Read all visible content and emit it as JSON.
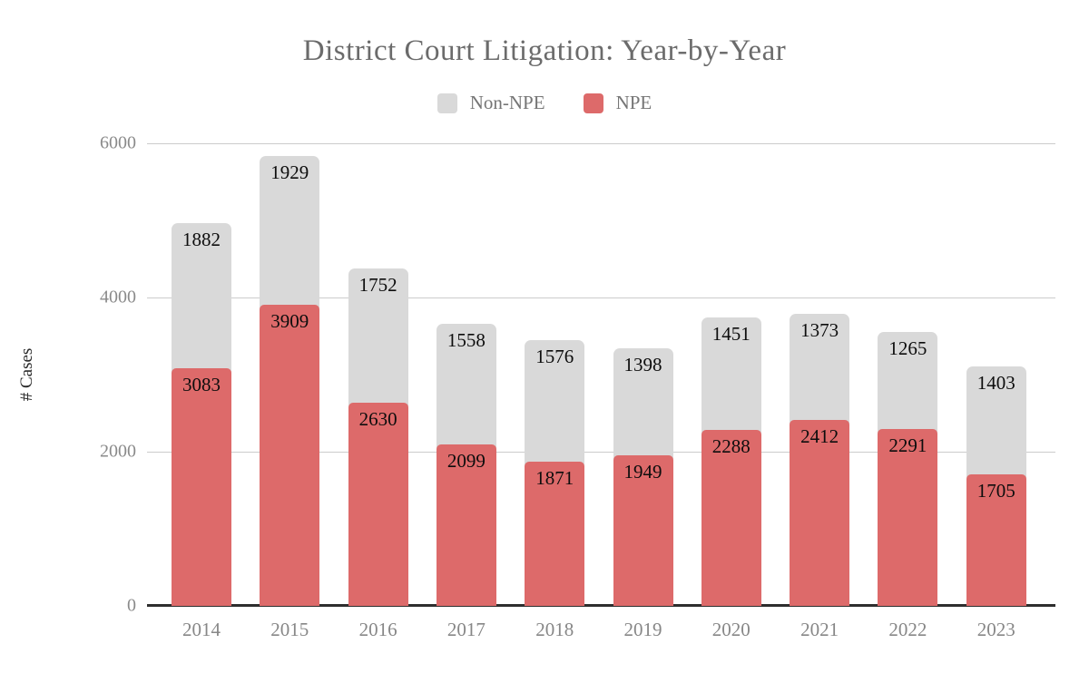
{
  "page": {
    "background": "#ffffff"
  },
  "chart": {
    "title": "District Court Litigation: Year-by-Year",
    "ylabel": "# Cases",
    "legend": [
      {
        "label": "Non-NPE",
        "color": "#d9d9d9"
      },
      {
        "label": "NPE",
        "color": "#dd6a6a"
      }
    ]
  },
  "chart_data": {
    "type": "bar",
    "stacked": true,
    "title": "District Court Litigation: Year-by-Year",
    "xlabel": "",
    "ylabel": "# Cases",
    "categories": [
      "2014",
      "2015",
      "2016",
      "2017",
      "2018",
      "2019",
      "2020",
      "2021",
      "2022",
      "2023"
    ],
    "series": [
      {
        "name": "NPE",
        "color": "#dd6a6a",
        "position": "bottom",
        "values": [
          3083,
          3909,
          2630,
          2099,
          1871,
          1949,
          2288,
          2412,
          2291,
          1705
        ]
      },
      {
        "name": "Non-NPE",
        "color": "#d9d9d9",
        "position": "top",
        "values": [
          1882,
          1929,
          1752,
          1558,
          1576,
          1398,
          1451,
          1373,
          1265,
          1403
        ]
      }
    ],
    "totals": [
      4965,
      5838,
      4382,
      3657,
      3447,
      3347,
      3739,
      3785,
      3556,
      3108
    ],
    "ylim": [
      0,
      6000
    ],
    "yticks": [
      0,
      2000,
      4000,
      6000
    ],
    "grid": true,
    "legend_position": "top",
    "colors": {
      "gridline": "#cccccc",
      "axis_baseline": "#2e2e2e",
      "tick_text": "#8a8a8a",
      "data_label": "#0d0d0d"
    }
  }
}
